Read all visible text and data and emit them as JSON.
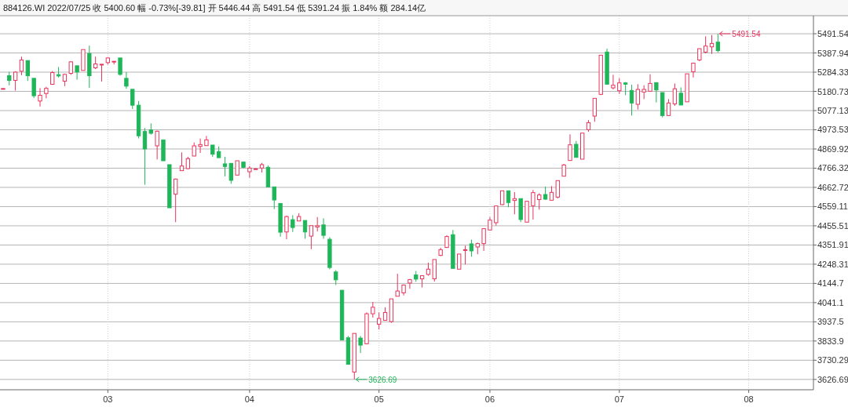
{
  "chart_data": {
    "type": "candlestick",
    "title": "884126.WI 2022/07/25  收 5400.60  幅 -0.73%[-39.81]  开 5446.44  高 5491.54  低 5391.24  振 1.84%  额 284.14亿",
    "categories": [
      null,
      null,
      null,
      null,
      null,
      null,
      null,
      null,
      null,
      null,
      null,
      null,
      null,
      null,
      null,
      null,
      null,
      "03",
      null,
      null,
      null,
      null,
      null,
      null,
      null,
      null,
      null,
      null,
      null,
      null,
      null,
      null,
      null,
      null,
      null,
      null,
      null,
      null,
      null,
      null,
      "04",
      null,
      null,
      null,
      null,
      null,
      null,
      null,
      null,
      null,
      null,
      null,
      null,
      null,
      null,
      null,
      null,
      null,
      null,
      null,
      null,
      "05",
      null,
      null,
      null,
      null,
      null,
      null,
      null,
      null,
      null,
      null,
      null,
      null,
      null,
      null,
      null,
      null,
      null,
      "06",
      null,
      null,
      null,
      null,
      null,
      null,
      null,
      null,
      null,
      null,
      null,
      null,
      null,
      null,
      null,
      null,
      null,
      null,
      null,
      null,
      "07",
      null,
      null,
      null,
      null,
      null,
      null,
      null,
      null,
      null,
      null,
      null,
      null,
      null,
      null,
      null,
      null,
      null,
      null,
      null,
      null,
      "08",
      null,
      null,
      null,
      null,
      null,
      null,
      null,
      null,
      null,
      null
    ],
    "ohlc": [
      [
        5194,
        5197,
        5192,
        5196
      ],
      [
        5265.3,
        5286.4,
        5213.1,
        5239.9
      ],
      [
        5240,
        5289,
        5185,
        5284.3
      ],
      [
        5289.2,
        5368,
        5268,
        5349.9
      ],
      [
        5347,
        5347,
        5237,
        5265
      ],
      [
        5251,
        5251,
        5145,
        5157
      ],
      [
        5128.5,
        5198,
        5099,
        5159.5
      ],
      [
        5169,
        5205,
        5143,
        5197
      ],
      [
        5218.7,
        5290.6,
        5216,
        5282.2
      ],
      [
        5270.9,
        5311.8,
        5255.4,
        5263.9
      ],
      [
        5235.7,
        5276.6,
        5208.9,
        5272.3
      ],
      [
        5278,
        5343,
        5269.5,
        5340
      ],
      [
        5318.8,
        5318.8,
        5244,
        5285
      ],
      [
        5293.5,
        5406.3,
        5293.5,
        5406.3
      ],
      [
        5385,
        5427.4,
        5199,
        5265.3
      ],
      [
        5307.6,
        5368,
        5300.5,
        5328.8
      ],
      [
        5325,
        5328,
        5234,
        5327
      ],
      [
        5335.8,
        5364,
        5325,
        5361
      ],
      [
        5342,
        5343,
        5326,
        5343
      ],
      [
        5361,
        5361,
        5265,
        5272.3
      ],
      [
        5251,
        5284.3,
        5194.8,
        5208.9
      ],
      [
        5191.9,
        5191.9,
        5086,
        5106
      ],
      [
        5106,
        5128.5,
        4927,
        4941
      ],
      [
        4964.3,
        4982.6,
        4676.7,
        4869.9
      ],
      [
        4972.8,
        5008,
        4947.4,
        4954.5
      ],
      [
        4886.8,
        4968.5,
        4813.5,
        4965.7
      ],
      [
        4919,
        4919,
        4806.4,
        4806.4
      ],
      [
        4785.3,
        4785.3,
        4552.6,
        4552.6
      ],
      [
        4625.9,
        4710.5,
        4475,
        4707.7
      ],
      [
        4752.8,
        4851.5,
        4752.8,
        4778.2
      ],
      [
        4764,
        4827.6,
        4761,
        4817.7
      ],
      [
        4831.8,
        4905,
        4831.8,
        4886.8
      ],
      [
        4883.8,
        4926,
        4848.7,
        4893.7
      ],
      [
        4888,
        4940.3,
        4888,
        4919
      ],
      [
        4891,
        4891,
        4827.6,
        4841.7
      ],
      [
        4855.8,
        4884,
        4823,
        4823
      ],
      [
        4789.5,
        4827.6,
        4721.8,
        4775.4
      ],
      [
        4792.3,
        4792.3,
        4682.3,
        4700.7
      ],
      [
        4728.9,
        4806.4,
        4728.9,
        4806.4
      ],
      [
        4799.3,
        4799.3,
        4767,
        4771
      ],
      [
        4747,
        4778,
        4714.7,
        4766.9
      ],
      [
        4763,
        4766,
        4760,
        4763
      ],
      [
        4766.9,
        4795,
        4743,
        4785.3
      ],
      [
        4771,
        4781,
        4665.4,
        4665.4
      ],
      [
        4665.4,
        4665.4,
        4545.6,
        4594.8
      ],
      [
        4576,
        4576,
        4397,
        4421
      ],
      [
        4422.3,
        4510,
        4382.8,
        4505.5
      ],
      [
        4488.6,
        4512.5,
        4422.3,
        4446.3
      ],
      [
        4481.5,
        4523.8,
        4481.5,
        4505.5
      ],
      [
        4484.3,
        4484.3,
        4385.6,
        4422.3
      ],
      [
        4399.7,
        4456.1,
        4329.2,
        4456.1
      ],
      [
        4449,
        4502.7,
        4425,
        4456
      ],
      [
        4460.3,
        4495.6,
        4385.6,
        4403.9
      ],
      [
        4382.8,
        4394,
        4220.6,
        4230.5
      ],
      [
        4206.5,
        4216.4,
        4136,
        4164.2
      ],
      [
        4107.8,
        4107.8,
        3840,
        3840
      ],
      [
        3851.2,
        3861,
        3706,
        3708.8
      ],
      [
        3666.5,
        3875,
        3626.69,
        3875
      ],
      [
        3849.8,
        3861,
        3769.4,
        3811.7
      ],
      [
        3818.8,
        3988,
        3818.8,
        3981
      ],
      [
        3981,
        4044.4,
        3960,
        4016
      ],
      [
        3924.6,
        3988,
        3896.4,
        3955.7
      ],
      [
        3945.7,
        4016.2,
        3943,
        3988
      ],
      [
        3938.6,
        4061.3,
        3931.6,
        4061.3
      ],
      [
        4075.4,
        4196.7,
        4075.4,
        4103.6
      ],
      [
        4093.7,
        4138.9,
        4079.6,
        4136
      ],
      [
        4146.6,
        4169.2,
        4115.6,
        4165
      ],
      [
        4190.4,
        4211.5,
        4153.7,
        4167.8
      ],
      [
        4169.2,
        4189,
        4122.7,
        4186.2
      ],
      [
        4193.2,
        4256.6,
        4186.2,
        4221.4
      ],
      [
        4169.2,
        4273.5,
        4155.1,
        4273.5
      ],
      [
        4296,
        4337,
        4291.8,
        4326.6
      ],
      [
        4338.4,
        4404.7,
        4338.4,
        4397.6
      ],
      [
        4407.5,
        4432.9,
        4225.6,
        4225.6
      ],
      [
        4221.4,
        4303.2,
        4221.4,
        4303.2
      ],
      [
        4324,
        4348.2,
        4246.8,
        4326.6
      ],
      [
        4358.1,
        4380.7,
        4289,
        4320
      ],
      [
        4341.2,
        4365.2,
        4301.8,
        4359.5
      ],
      [
        4359.5,
        4440,
        4320,
        4440
      ],
      [
        4432.9,
        4503.3,
        4432.9,
        4486.4
      ],
      [
        4472.3,
        4562.6,
        4456.8,
        4562.6
      ],
      [
        4569.6,
        4644.4,
        4566.8,
        4644.4
      ],
      [
        4644.4,
        4644.4,
        4555.5,
        4580.9
      ],
      [
        4592.2,
        4637.4,
        4517.5,
        4602.1
      ],
      [
        4602.1,
        4602.1,
        4475.2,
        4489.3
      ],
      [
        4475.2,
        4588,
        4475.2,
        4588
      ],
      [
        4564,
        4648.6,
        4489.3,
        4634.5
      ],
      [
        4596.9,
        4631.4,
        4542.6,
        4621.9
      ],
      [
        4624.4,
        4666.7,
        4596.2,
        4599
      ],
      [
        4593.4,
        4669.5,
        4593.4,
        4635.7
      ],
      [
        4610.3,
        4699.3,
        4603.2,
        4699.3
      ],
      [
        4723,
        4789.4,
        4723,
        4783.7
      ],
      [
        4807.7,
        4948.7,
        4807.7,
        4892.3
      ],
      [
        4895.1,
        4913.4,
        4824.6,
        4824.6
      ],
      [
        4814.7,
        4955.7,
        4814.7,
        4955.7
      ],
      [
        4974,
        5026,
        4963,
        5012
      ],
      [
        5047.4,
        5143.3,
        5016.4,
        5143.3
      ],
      [
        5164.4,
        5375.9,
        5160.2,
        5375.9
      ],
      [
        5392.8,
        5411.2,
        5219.4,
        5219.4
      ],
      [
        5199.6,
        5270.1,
        5191.2,
        5213.7
      ],
      [
        5184.2,
        5251.8,
        5167.3,
        5226.4
      ],
      [
        5226.4,
        5230.7,
        5160.2,
        5219.4
      ],
      [
        5185.6,
        5216.6,
        5050.2,
        5117.9
      ],
      [
        5110.8,
        5219.4,
        5082.6,
        5191.2
      ],
      [
        5177.1,
        5213.7,
        5139,
        5191.2
      ],
      [
        5181.4,
        5273,
        5181.4,
        5223.6
      ],
      [
        5227.8,
        5227.8,
        5120.7,
        5188.4
      ],
      [
        5174.3,
        5174.3,
        5040.3,
        5050.2
      ],
      [
        5050.2,
        5139,
        5047.4,
        5117.9
      ],
      [
        5112.8,
        5223,
        5102.9,
        5194.8
      ],
      [
        5170.8,
        5201.9,
        5107.2,
        5107.2
      ],
      [
        5124.2,
        5275.4,
        5124.2,
        5275.4
      ],
      [
        5286.7,
        5333.3,
        5255.5,
        5333.3
      ],
      [
        5350.2,
        5411,
        5343.2,
        5411
      ],
      [
        5392.6,
        5477.4,
        5385.5,
        5425.1
      ],
      [
        5420.9,
        5484.5,
        5382.7,
        5439.3
      ],
      [
        5446.44,
        5491.54,
        5391.24,
        5400.6
      ],
      null,
      null,
      null,
      null,
      null,
      null,
      null,
      null,
      null,
      null,
      null,
      null,
      null,
      null,
      null
    ],
    "colors": [
      "#e8345c",
      "#1fb65a",
      "#e8345c",
      "#e8345c",
      "#1fb65a",
      "#1fb65a",
      "#e8345c",
      "#e8345c",
      "#e8345c",
      "#1fb65a",
      "#e8345c",
      "#e8345c",
      "#1fb65a",
      "#e8345c",
      "#1fb65a",
      "#e8345c",
      "#e8345c",
      "#e8345c",
      "#e8345c",
      "#1fb65a",
      "#1fb65a",
      "#1fb65a",
      "#1fb65a",
      "#1fb65a",
      "#1fb65a",
      "#e8345c",
      "#1fb65a",
      "#1fb65a",
      "#e8345c",
      "#e8345c",
      "#e8345c",
      "#e8345c",
      "#e8345c",
      "#e8345c",
      "#1fb65a",
      "#1fb65a",
      "#1fb65a",
      "#1fb65a",
      "#e8345c",
      "#1fb65a",
      "#e8345c",
      "#e8345c",
      "#e8345c",
      "#1fb65a",
      "#1fb65a",
      "#1fb65a",
      "#e8345c",
      "#1fb65a",
      "#e8345c",
      "#1fb65a",
      "#e8345c",
      "#e8345c",
      "#1fb65a",
      "#1fb65a",
      "#1fb65a",
      "#1fb65a",
      "#1fb65a",
      "#e8345c",
      "#1fb65a",
      "#e8345c",
      "#e8345c",
      "#e8345c",
      "#e8345c",
      "#e8345c",
      "#e8345c",
      "#e8345c",
      "#e8345c",
      "#1fb65a",
      "#e8345c",
      "#e8345c",
      "#e8345c",
      "#e8345c",
      "#e8345c",
      "#1fb65a",
      "#e8345c",
      "#e8345c",
      "#1fb65a",
      "#e8345c",
      "#e8345c",
      "#e8345c",
      "#e8345c",
      "#e8345c",
      "#1fb65a",
      "#e8345c",
      "#1fb65a",
      "#e8345c",
      "#e8345c",
      "#e8345c",
      "#1fb65a",
      "#e8345c",
      "#e8345c",
      "#e8345c",
      "#e8345c",
      "#1fb65a",
      "#e8345c",
      "#e8345c",
      "#e8345c",
      "#e8345c",
      "#1fb65a",
      "#e8345c",
      "#e8345c",
      "#1fb65a",
      "#1fb65a",
      "#e8345c",
      "#e8345c",
      "#e8345c",
      "#1fb65a",
      "#1fb65a",
      "#e8345c",
      "#e8345c",
      "#1fb65a",
      "#e8345c",
      "#e8345c",
      "#e8345c",
      "#e8345c",
      "#e8345c",
      "#1fb65a",
      null,
      null,
      null,
      null,
      null,
      null,
      null,
      null,
      null,
      null,
      null,
      null,
      null,
      null,
      null
    ],
    "ylim": [
      3571,
      5589
    ],
    "yticks": [
      5491.54,
      5387.94,
      5284.33,
      5180.73,
      5077.13,
      4973.53,
      4869.92,
      4766.32,
      4662.72,
      4559.11,
      4455.51,
      4351.91,
      4248.31,
      4144.7,
      4041.1,
      3937.5,
      3833.9,
      3730.29,
      3626.69
    ],
    "grid": true,
    "annotations": [
      "5491.54",
      "3626.69"
    ]
  }
}
